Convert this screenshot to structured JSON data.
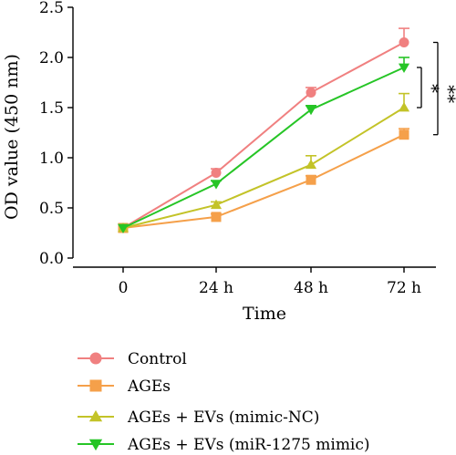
{
  "chart_data": {
    "type": "line",
    "xlabel": "Time",
    "ylabel": "OD value (450 nm)",
    "categories": [
      "0",
      "24 h",
      "48 h",
      "72 h"
    ],
    "ylim": [
      0,
      2.5
    ],
    "yticks": [
      "0.0",
      "0.5",
      "1.0",
      "1.5",
      "2.0",
      "2.5"
    ],
    "legend_position": "bottom",
    "series": [
      {
        "name": "Control",
        "color": "#f08080",
        "marker": "circle",
        "values": [
          0.3,
          0.85,
          1.65,
          2.15
        ],
        "errors": [
          0.02,
          0.04,
          0.05,
          0.14
        ]
      },
      {
        "name": "AGEs",
        "color": "#f5a04a",
        "marker": "square",
        "values": [
          0.3,
          0.41,
          0.78,
          1.23
        ],
        "errors": [
          0.02,
          0.03,
          0.04,
          0.06
        ]
      },
      {
        "name": "AGEs + EVs (mimic-NC)",
        "color": "#c3c328",
        "marker": "triangle-up",
        "values": [
          0.3,
          0.53,
          0.93,
          1.5
        ],
        "errors": [
          0.02,
          0.03,
          0.09,
          0.14
        ]
      },
      {
        "name": "AGEs + EVs (miR-1275 mimic)",
        "color": "#26c526",
        "marker": "triangle-down",
        "values": [
          0.3,
          0.74,
          1.48,
          1.9
        ],
        "errors": [
          0.02,
          0.03,
          0.04,
          0.1
        ]
      }
    ],
    "annotations": [
      {
        "label": "*",
        "from_series": 2,
        "to_series": 3
      },
      {
        "label": "**",
        "from_series": 1,
        "to_series": 0
      }
    ]
  }
}
